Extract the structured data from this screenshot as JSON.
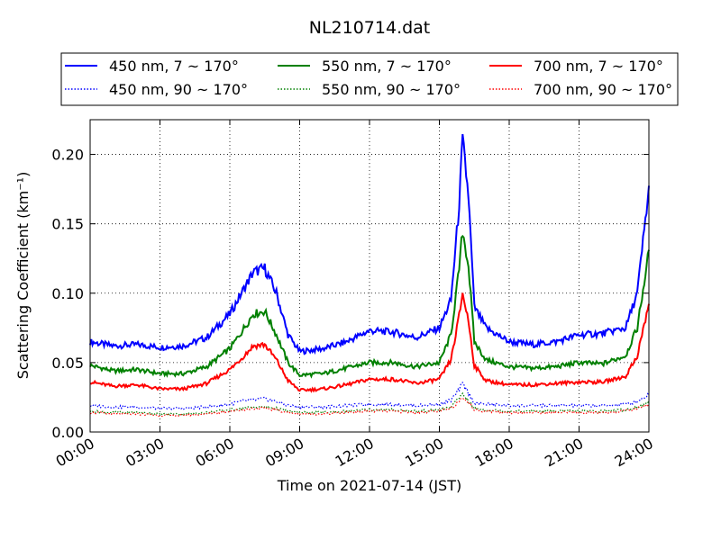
{
  "chart_data": {
    "type": "line",
    "title": "NL210714.dat",
    "xlabel": "Time on 2021-07-14 (JST)",
    "ylabel": "Scattering Coefficient (km⁻¹)",
    "xlim": [
      "00:00",
      "24:00"
    ],
    "ylim": [
      0,
      0.225
    ],
    "grid": true,
    "legend_position": "top",
    "x_ticks": [
      "00:00",
      "03:00",
      "06:00",
      "09:00",
      "12:00",
      "15:00",
      "18:00",
      "21:00",
      "24:00"
    ],
    "y_ticks": [
      "0.00",
      "0.05",
      "0.10",
      "0.15",
      "0.20"
    ],
    "x": [
      "00:00",
      "01:00",
      "02:00",
      "03:00",
      "04:00",
      "05:00",
      "06:00",
      "06:30",
      "07:00",
      "07:30",
      "08:00",
      "08:30",
      "09:00",
      "10:00",
      "11:00",
      "12:00",
      "13:00",
      "14:00",
      "15:00",
      "15:30",
      "15:50",
      "16:00",
      "16:15",
      "16:30",
      "17:00",
      "18:00",
      "19:00",
      "20:00",
      "21:00",
      "22:00",
      "23:00",
      "23:30",
      "24:00"
    ],
    "series": [
      {
        "name": "450 nm, 7 ~ 170°",
        "color": "#0000ff",
        "style": "solid",
        "values": [
          0.065,
          0.062,
          0.063,
          0.061,
          0.062,
          0.068,
          0.085,
          0.1,
          0.115,
          0.118,
          0.1,
          0.07,
          0.058,
          0.06,
          0.065,
          0.073,
          0.072,
          0.068,
          0.075,
          0.095,
          0.16,
          0.21,
          0.17,
          0.09,
          0.075,
          0.065,
          0.063,
          0.065,
          0.07,
          0.071,
          0.075,
          0.1,
          0.175
        ]
      },
      {
        "name": "550 nm, 7 ~ 170°",
        "color": "#008000",
        "style": "solid",
        "values": [
          0.048,
          0.044,
          0.045,
          0.042,
          0.042,
          0.047,
          0.06,
          0.072,
          0.085,
          0.087,
          0.07,
          0.05,
          0.041,
          0.042,
          0.046,
          0.05,
          0.05,
          0.047,
          0.05,
          0.07,
          0.115,
          0.145,
          0.12,
          0.065,
          0.052,
          0.047,
          0.046,
          0.047,
          0.05,
          0.049,
          0.055,
          0.075,
          0.13
        ]
      },
      {
        "name": "700 nm, 7 ~ 170°",
        "color": "#ff0000",
        "style": "solid",
        "values": [
          0.036,
          0.033,
          0.034,
          0.031,
          0.031,
          0.035,
          0.045,
          0.053,
          0.062,
          0.063,
          0.052,
          0.037,
          0.03,
          0.031,
          0.034,
          0.038,
          0.038,
          0.035,
          0.038,
          0.052,
          0.082,
          0.1,
          0.08,
          0.048,
          0.037,
          0.034,
          0.034,
          0.035,
          0.036,
          0.036,
          0.04,
          0.055,
          0.092
        ]
      },
      {
        "name": "450 nm, 90 ~ 170°",
        "color": "#0000ff",
        "style": "dotted",
        "values": [
          0.019,
          0.018,
          0.018,
          0.017,
          0.017,
          0.018,
          0.02,
          0.022,
          0.023,
          0.024,
          0.022,
          0.019,
          0.018,
          0.018,
          0.019,
          0.02,
          0.02,
          0.019,
          0.02,
          0.023,
          0.03,
          0.035,
          0.028,
          0.021,
          0.02,
          0.019,
          0.019,
          0.019,
          0.019,
          0.019,
          0.02,
          0.022,
          0.027
        ]
      },
      {
        "name": "550 nm, 90 ~ 170°",
        "color": "#008000",
        "style": "dotted",
        "values": [
          0.015,
          0.014,
          0.014,
          0.013,
          0.013,
          0.014,
          0.016,
          0.017,
          0.018,
          0.018,
          0.017,
          0.015,
          0.014,
          0.014,
          0.015,
          0.016,
          0.016,
          0.015,
          0.016,
          0.018,
          0.024,
          0.028,
          0.022,
          0.017,
          0.016,
          0.015,
          0.015,
          0.015,
          0.015,
          0.015,
          0.016,
          0.018,
          0.021
        ]
      },
      {
        "name": "700 nm, 90 ~ 170°",
        "color": "#ff0000",
        "style": "dotted",
        "values": [
          0.014,
          0.013,
          0.013,
          0.012,
          0.012,
          0.013,
          0.015,
          0.016,
          0.017,
          0.017,
          0.016,
          0.014,
          0.013,
          0.013,
          0.014,
          0.015,
          0.015,
          0.014,
          0.015,
          0.017,
          0.022,
          0.026,
          0.021,
          0.016,
          0.015,
          0.014,
          0.014,
          0.014,
          0.014,
          0.014,
          0.015,
          0.017,
          0.02
        ]
      }
    ]
  }
}
